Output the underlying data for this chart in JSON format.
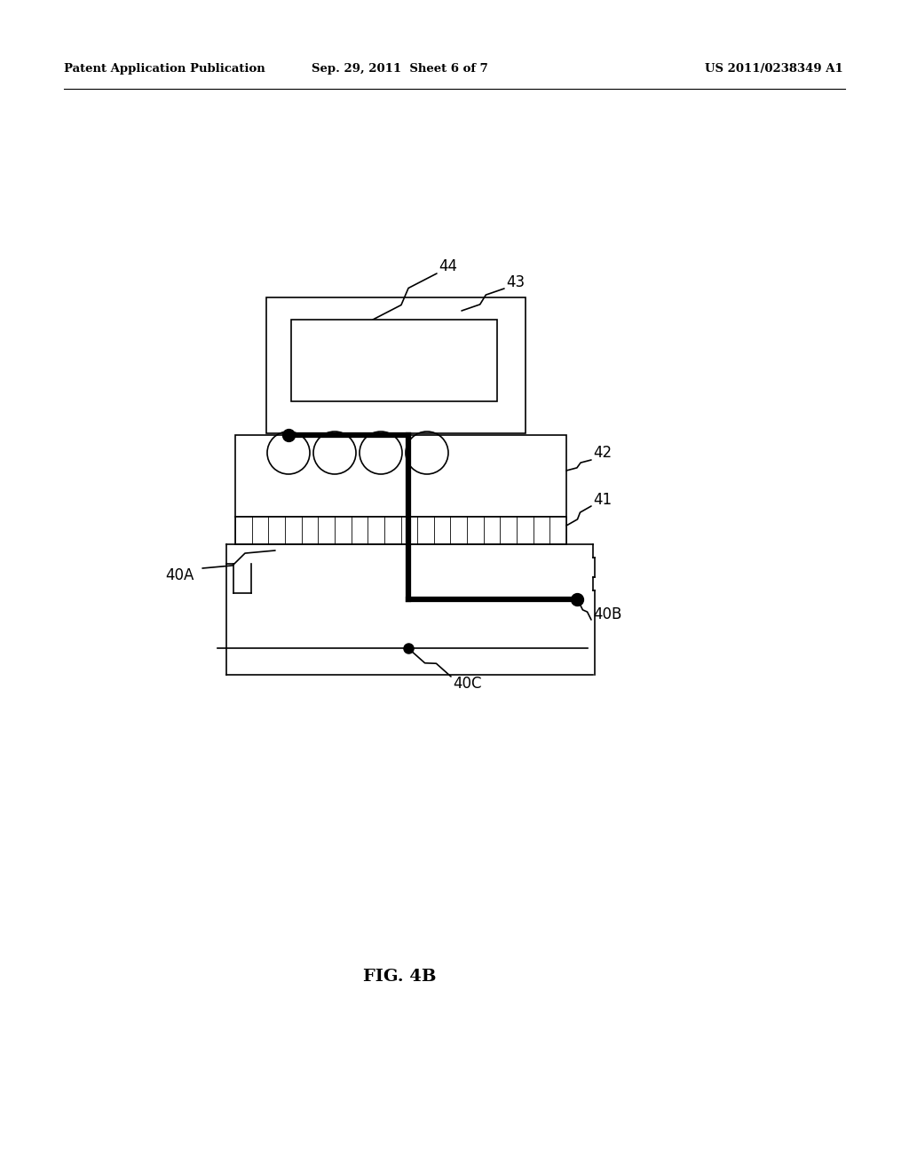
{
  "bg_color": "#ffffff",
  "header_left": "Patent Application Publication",
  "header_mid": "Sep. 29, 2011  Sheet 6 of 7",
  "header_right": "US 2011/0238349 A1",
  "fig_label": "FIG. 4B"
}
